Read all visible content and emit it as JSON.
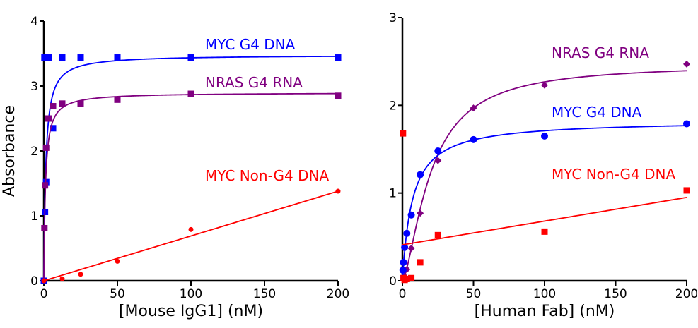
{
  "chart_data": [
    {
      "type": "scatter",
      "xlabel": "[Mouse IgG1] (nM)",
      "ylabel": "Absorbance",
      "xlim": [
        0,
        200
      ],
      "ylim": [
        0,
        4
      ],
      "xticks": [
        "0",
        "50",
        "100",
        "150",
        "200"
      ],
      "yticks": [
        "0",
        "1",
        "2",
        "3",
        "4"
      ],
      "grid": false,
      "series": [
        {
          "name": "MYC G4 DNA",
          "color": "#0000ff",
          "marker": "square",
          "x": [
            0,
            0.39,
            0.78,
            1.56,
            3.13,
            6.25,
            12.5,
            25,
            50,
            100,
            200
          ],
          "y": [
            0,
            3.44,
            1.06,
            1.52,
            3.44,
            2.35,
            3.44,
            3.44,
            3.44,
            3.44,
            3.44
          ]
        },
        {
          "name": "NRAS G4 RNA",
          "color": "#800080",
          "marker": "square",
          "x": [
            0.39,
            0.78,
            1.56,
            3.13,
            6.25,
            12.5,
            25,
            50,
            100,
            200
          ],
          "y": [
            0.81,
            1.47,
            2.05,
            2.5,
            2.69,
            2.73,
            2.73,
            2.79,
            2.88,
            2.85
          ]
        },
        {
          "name": "MYC Non-G4 DNA",
          "color": "#ff0000",
          "marker": "circle",
          "x": [
            0,
            12.5,
            25,
            50,
            100,
            200
          ],
          "y": [
            0,
            0.03,
            0.1,
            0.3,
            0.79,
            1.38
          ]
        }
      ]
    },
    {
      "type": "scatter",
      "xlabel": "[Human Fab] (nM)",
      "xlim": [
        0,
        200
      ],
      "ylim": [
        0,
        3
      ],
      "xticks": [
        "0",
        "50",
        "100",
        "150",
        "200"
      ],
      "yticks": [
        "0",
        "1",
        "2",
        "3"
      ],
      "grid": false,
      "series": [
        {
          "name": "NRAS G4 RNA",
          "color": "#800080",
          "marker": "diamond",
          "x": [
            1.56,
            3.13,
            6.25,
            12.5,
            25,
            50,
            100,
            200
          ],
          "y": [
            0.05,
            0.13,
            0.37,
            0.77,
            1.37,
            1.97,
            2.23,
            2.47
          ]
        },
        {
          "name": "MYC G4 DNA",
          "color": "#0000ff",
          "marker": "circle",
          "x": [
            0.39,
            0.78,
            1.56,
            3.13,
            6.25,
            12.5,
            25,
            50,
            100,
            200
          ],
          "y": [
            0.12,
            0.21,
            0.38,
            0.54,
            0.75,
            1.21,
            1.48,
            1.61,
            1.65,
            1.79
          ]
        },
        {
          "name": "MYC Non-G4 DNA",
          "color": "#ff0000",
          "marker": "square",
          "x": [
            0.39,
            0.78,
            1.56,
            3.13,
            6.25,
            12.5,
            25,
            100,
            200
          ],
          "y": [
            1.68,
            0.03,
            0.01,
            0.02,
            0.03,
            0.21,
            0.52,
            0.56,
            1.03
          ]
        }
      ]
    }
  ]
}
